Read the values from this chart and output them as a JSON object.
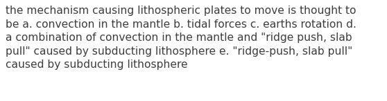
{
  "text": "the mechanism causing lithospheric plates to move is thought to\nbe a. convection in the mantle b. tidal forces c. earths rotation d.\na combination of convection in the mantle and \"ridge push, slab\npull\" caused by subducting lithosphere e. \"ridge-push, slab pull\"\ncaused by subducting lithosphere",
  "background_color": "#ffffff",
  "text_color": "#3d3d3d",
  "font_size": 11.2,
  "font_family": "DejaVu Sans",
  "figwidth": 5.58,
  "figheight": 1.46,
  "dpi": 100
}
